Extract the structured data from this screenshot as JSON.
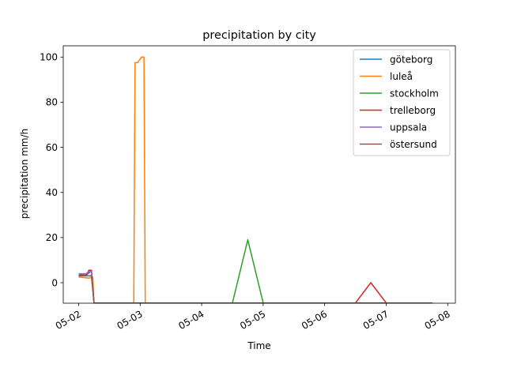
{
  "chart_data": {
    "type": "line",
    "title": "precipitation by city",
    "xlabel": "Time",
    "ylabel": "precipitation mm/h",
    "x_ticks": [
      "05-02",
      "05-03",
      "05-04",
      "05-05",
      "05-06",
      "05-07",
      "05-08"
    ],
    "y_ticks": [
      "0",
      "20",
      "40",
      "60",
      "80",
      "100"
    ],
    "xlim": [
      "2024-05-01T18:00",
      "2024-05-08T03:00"
    ],
    "ylim": [
      -9.1,
      105
    ],
    "grid": false,
    "legend_position": "top-right",
    "series": [
      {
        "name": "göteborg",
        "color": "#1f77b4",
        "points": [
          [
            "2024-05-02T00:00",
            3.5
          ],
          [
            "2024-05-02T03:00",
            3.4
          ],
          [
            "2024-05-02T05:00",
            5.2
          ],
          [
            "2024-05-02T06:00",
            -9
          ],
          [
            "2024-05-07T18:00",
            -9
          ]
        ]
      },
      {
        "name": "luleå",
        "color": "#ff7f0e",
        "points": [
          [
            "2024-05-02T00:00",
            2.5
          ],
          [
            "2024-05-02T04:00",
            2
          ],
          [
            "2024-05-02T05:30",
            2.5
          ],
          [
            "2024-05-02T06:00",
            -9
          ],
          [
            "2024-05-02T21:30",
            -9
          ],
          [
            "2024-05-02T22:00",
            97.5
          ],
          [
            "2024-05-02T23:00",
            97.5
          ],
          [
            "2024-05-03T00:30",
            100
          ],
          [
            "2024-05-03T01:30",
            100
          ],
          [
            "2024-05-03T02:00",
            -9
          ],
          [
            "2024-05-07T18:00",
            -9
          ]
        ]
      },
      {
        "name": "stockholm",
        "color": "#2ca02c",
        "points": [
          [
            "2024-05-02T00:00",
            3
          ],
          [
            "2024-05-02T05:00",
            3
          ],
          [
            "2024-05-02T06:00",
            -9
          ],
          [
            "2024-05-04T12:00",
            -9
          ],
          [
            "2024-05-04T18:00",
            19
          ],
          [
            "2024-05-05T00:00",
            -9
          ],
          [
            "2024-05-07T18:00",
            -9
          ]
        ]
      },
      {
        "name": "trelleborg",
        "color": "#d62728",
        "points": [
          [
            "2024-05-02T00:00",
            3
          ],
          [
            "2024-05-02T03:00",
            3.5
          ],
          [
            "2024-05-02T04:00",
            5.5
          ],
          [
            "2024-05-02T05:00",
            5.5
          ],
          [
            "2024-05-02T06:00",
            -9
          ],
          [
            "2024-05-06T12:00",
            -9
          ],
          [
            "2024-05-06T18:00",
            0
          ],
          [
            "2024-05-07T00:00",
            -9
          ],
          [
            "2024-05-07T18:00",
            -9
          ]
        ]
      },
      {
        "name": "uppsala",
        "color": "#9467bd",
        "points": [
          [
            "2024-05-02T00:00",
            4
          ],
          [
            "2024-05-02T03:00",
            4
          ],
          [
            "2024-05-02T04:00",
            5
          ],
          [
            "2024-05-02T05:00",
            5
          ],
          [
            "2024-05-02T06:00",
            -9
          ],
          [
            "2024-05-07T18:00",
            -9
          ]
        ]
      },
      {
        "name": "östersund",
        "color": "#8c564b",
        "points": [
          [
            "2024-05-02T00:00",
            3
          ],
          [
            "2024-05-02T03:00",
            3
          ],
          [
            "2024-05-02T05:00",
            3
          ],
          [
            "2024-05-02T06:00",
            -9
          ],
          [
            "2024-05-07T18:00",
            -9
          ]
        ]
      }
    ]
  }
}
